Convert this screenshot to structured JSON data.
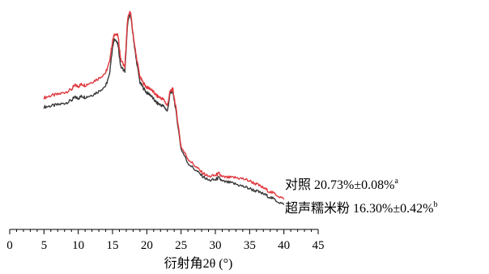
{
  "chart_data": {
    "type": "line",
    "title": "",
    "xlabel": "衍射角2θ (°)",
    "ylabel": "",
    "xlim": [
      0,
      45
    ],
    "x_ticks": [
      0,
      5,
      10,
      15,
      20,
      25,
      30,
      35,
      40,
      45
    ],
    "y_axis_shown": false,
    "grid": false,
    "legend": "inline labels at right end of each curve",
    "series": [
      {
        "name": "对照",
        "annotation": "对照 20.73%±0.08%",
        "superscript": "a",
        "color": "#e0383e",
        "x": [
          5,
          6,
          7,
          8,
          9,
          9.5,
          10,
          10.5,
          11,
          12,
          13,
          14,
          14.5,
          15,
          15.3,
          15.8,
          16.2,
          16.8,
          17.2,
          17.6,
          18,
          18.4,
          19,
          19.5,
          20,
          20.5,
          21,
          21.5,
          22,
          22.5,
          23,
          23.4,
          23.8,
          24.3,
          25,
          26,
          27,
          28,
          29,
          30,
          30.5,
          31,
          32,
          33,
          34,
          35,
          36,
          37,
          38,
          39,
          40
        ],
        "y": [
          205,
          209,
          211,
          215,
          220,
          228,
          226,
          230,
          228,
          234,
          241,
          251,
          268,
          309,
          323,
          319,
          275,
          262,
          350,
          365,
          322,
          286,
          243,
          232,
          224,
          222,
          215,
          208,
          205,
          201,
          190,
          217,
          221,
          182,
          115,
          93,
          80,
          68,
          60,
          62,
          66,
          59,
          58,
          58,
          56,
          52,
          46,
          39,
          32,
          26,
          18
        ]
      },
      {
        "name": "超声糯米粉",
        "annotation": "超声糯米粉 16.30%±0.42%",
        "superscript": "b",
        "color": "#3a3a3a",
        "x": [
          5,
          6,
          7,
          8,
          9,
          9.5,
          10,
          10.5,
          11,
          12,
          13,
          14,
          14.5,
          15,
          15.3,
          15.8,
          16.2,
          16.8,
          17.2,
          17.6,
          18,
          18.4,
          19,
          19.5,
          20,
          20.5,
          21,
          21.5,
          22,
          22.5,
          23,
          23.4,
          23.8,
          24.3,
          25,
          26,
          27,
          28,
          29,
          30,
          30.5,
          31,
          32,
          33,
          34,
          35,
          36,
          37,
          38,
          39,
          40
        ],
        "y": [
          188,
          190,
          192,
          195,
          200,
          206,
          204,
          208,
          206,
          210,
          217,
          227,
          244,
          297,
          315,
          302,
          262,
          254,
          342,
          360,
          320,
          280,
          233,
          223,
          214,
          211,
          202,
          195,
          192,
          189,
          180,
          213,
          218,
          176,
          111,
          85,
          73,
          62,
          53,
          54,
          58,
          51,
          49,
          46,
          42,
          38,
          33,
          28,
          22,
          15,
          8
        ]
      }
    ]
  }
}
